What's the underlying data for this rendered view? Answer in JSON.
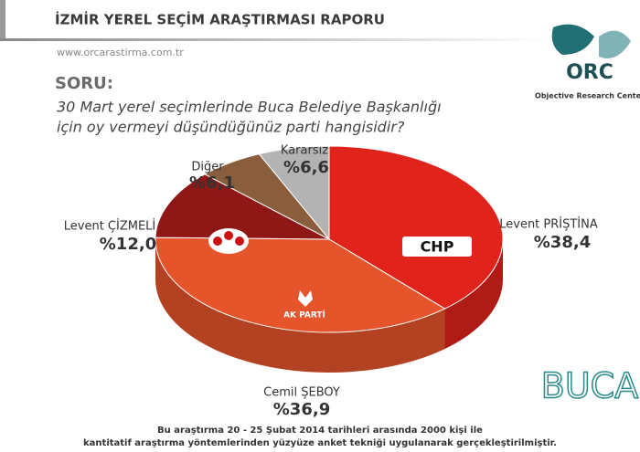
{
  "header": {
    "title": "İZMİR YEREL SEÇİM ARAŞTIRMASI RAPORU",
    "url": "www.orcarastirma.com.tr"
  },
  "logo": {
    "name": "ORC",
    "tagline": "Objective Research Center"
  },
  "question": {
    "label": "SORU:",
    "lines": [
      "30 Mart yerel seçimlerinde Buca Belediye Başkanlığı",
      "için oy vermeyi düşündüğünüz parti hangisidir?"
    ]
  },
  "chart_data": {
    "type": "pie",
    "categories": [
      "Levent PRİŞTİNA",
      "Cemil ŞEBOY",
      "Levent ÇİZMELİ",
      "Diğer",
      "Kararsız"
    ],
    "values": [
      38.4,
      36.9,
      12.0,
      6.1,
      6.6
    ],
    "value_labels": [
      "%38,4",
      "%36,9",
      "%12,0",
      "%6,1",
      "%6,6"
    ],
    "colors": [
      "#e0241b",
      "#e6542b",
      "#8f1716",
      "#8a5e3c",
      "#b3b3b3"
    ],
    "party_logos": [
      "CHP",
      "AK PARTİ"
    ]
  },
  "district": "BUCA",
  "footnote": [
    "Bu araştırma 20 - 25 Şubat 2014 tarihleri arasında  2000 kişi ile",
    "kantitatif araştırma yöntemlerinden yüzyüze anket tekniği  uygulanarak gerçekleştirilmiştir."
  ]
}
